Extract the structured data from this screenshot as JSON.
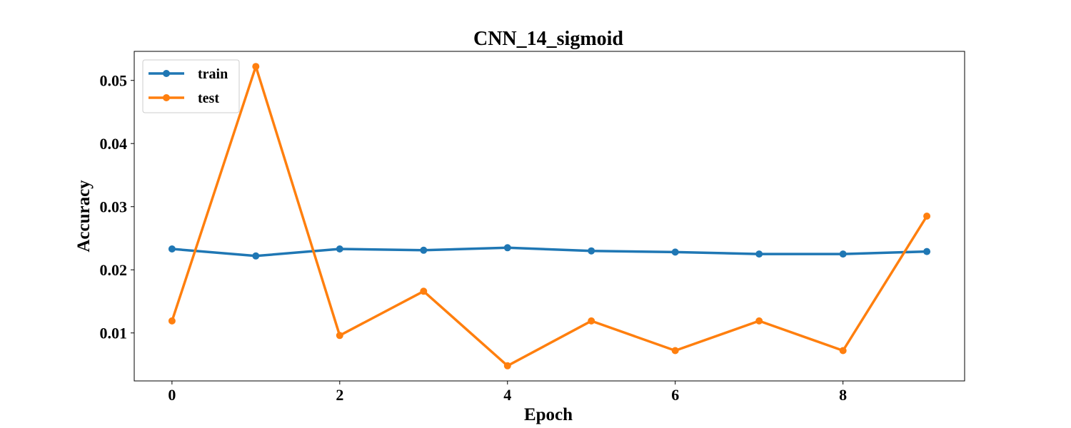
{
  "chart_data": {
    "type": "line",
    "title": "CNN_14_sigmoid",
    "xlabel": "Epoch",
    "ylabel": "Accuracy",
    "x": [
      0,
      1,
      2,
      3,
      4,
      5,
      6,
      7,
      8,
      9
    ],
    "series": [
      {
        "name": "train",
        "color": "#1f77b4",
        "values": [
          0.0233,
          0.0222,
          0.0233,
          0.0231,
          0.0235,
          0.023,
          0.0228,
          0.0225,
          0.0225,
          0.0229
        ]
      },
      {
        "name": "test",
        "color": "#ff7f0e",
        "values": [
          0.0119,
          0.0522,
          0.0096,
          0.0166,
          0.0048,
          0.0119,
          0.0072,
          0.0119,
          0.0072,
          0.0285
        ]
      }
    ],
    "xticks": [
      0,
      2,
      4,
      6,
      8
    ],
    "yticks": [
      0.01,
      0.02,
      0.03,
      0.04,
      0.05
    ],
    "xtick_labels": [
      "0",
      "2",
      "4",
      "6",
      "8"
    ],
    "ytick_labels": [
      "0.01",
      "0.02",
      "0.03",
      "0.04",
      "0.05"
    ],
    "xlim": [
      -0.45,
      9.45
    ],
    "ylim": [
      0.0024,
      0.0546
    ],
    "grid": false,
    "legend": "upper left"
  }
}
